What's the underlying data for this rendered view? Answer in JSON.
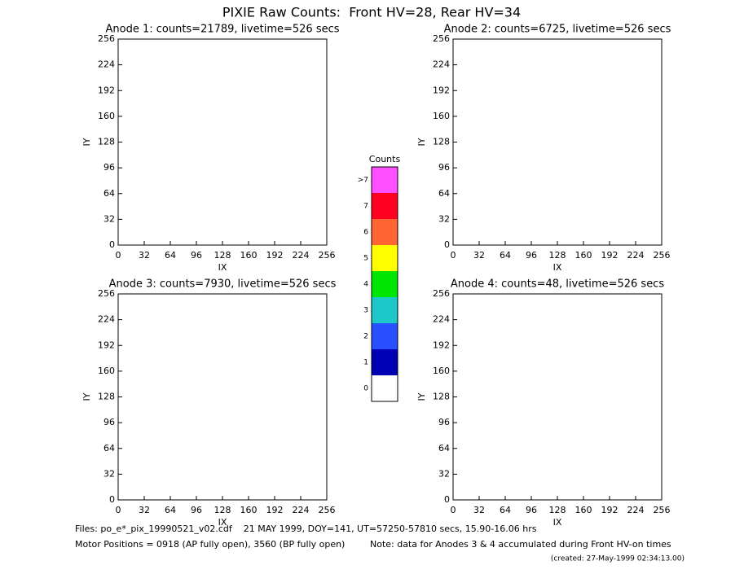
{
  "title": "PIXIE Raw Counts:  Front HV=28, Rear HV=34",
  "chart_data": [
    {
      "type": "heatmap",
      "title": "Anode 1: counts=21789, livetime=526 secs",
      "xlabel": "IX",
      "ylabel": "IY",
      "xlim": [
        0,
        256
      ],
      "ylim": [
        0,
        256
      ],
      "xticks": [
        0,
        32,
        64,
        96,
        128,
        160,
        192,
        224,
        256
      ],
      "yticks": [
        0,
        32,
        64,
        96,
        128,
        160,
        192,
        224,
        256
      ]
    },
    {
      "type": "heatmap",
      "title": "Anode 2: counts=6725, livetime=526 secs",
      "xlabel": "IX",
      "ylabel": "IY",
      "xlim": [
        0,
        256
      ],
      "ylim": [
        0,
        256
      ],
      "xticks": [
        0,
        32,
        64,
        96,
        128,
        160,
        192,
        224,
        256
      ],
      "yticks": [
        0,
        32,
        64,
        96,
        128,
        160,
        192,
        224,
        256
      ]
    },
    {
      "type": "heatmap",
      "title": "Anode 3: counts=7930, livetime=526 secs",
      "xlabel": "IX",
      "ylabel": "IY",
      "xlim": [
        0,
        256
      ],
      "ylim": [
        0,
        256
      ],
      "xticks": [
        0,
        32,
        64,
        96,
        128,
        160,
        192,
        224,
        256
      ],
      "yticks": [
        0,
        32,
        64,
        96,
        128,
        160,
        192,
        224,
        256
      ]
    },
    {
      "type": "heatmap",
      "title": "Anode 4: counts=48, livetime=526 secs",
      "xlabel": "IX",
      "ylabel": "IY",
      "xlim": [
        0,
        256
      ],
      "ylim": [
        0,
        256
      ],
      "xticks": [
        0,
        32,
        64,
        96,
        128,
        160,
        192,
        224,
        256
      ],
      "yticks": [
        0,
        32,
        64,
        96,
        128,
        160,
        192,
        224,
        256
      ]
    },
    {
      "type": "colorbar",
      "title": "Counts",
      "categories": [
        "0",
        "1",
        "2",
        "3",
        "4",
        "5",
        "6",
        "7",
        ">7"
      ],
      "colors": [
        "#ffffff",
        "#0000b4",
        "#2850ff",
        "#1ec8c8",
        "#00e600",
        "#ffff00",
        "#ff6432",
        "#ff0020",
        "#ff50ff"
      ]
    }
  ],
  "footer": [
    "Files: po_e*_pix_19990521_v02.cdf    21 MAY 1999, DOY=141, UT=57250-57810 secs, 15.90-16.06 hrs",
    "Motor Positions = 0918 (AP fully open), 3560 (BP fully open)",
    "Note: data for Anodes 3 & 4 accumulated during Front HV-on times",
    "(created: 27-May-1999 02:34:13.00)"
  ]
}
